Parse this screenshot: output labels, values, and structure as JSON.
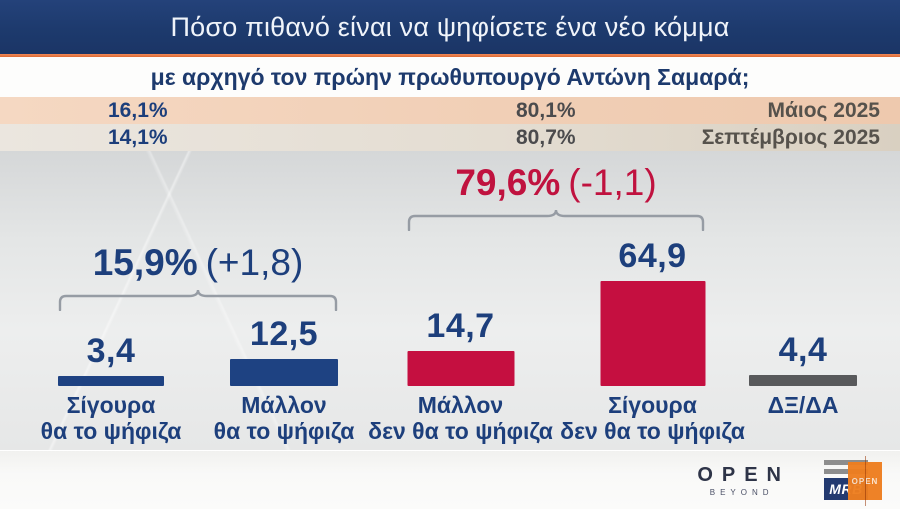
{
  "header": {
    "title": "Πόσο πιθανό είναι να ψηφίσετε ένα νέο κόμμα",
    "subtitle": "με αρχηγό τον πρώην πρωθυπουργό Αντώνη Σαμαρά;"
  },
  "history": {
    "rows": [
      {
        "likely_pct": "16,1%",
        "unlikely_pct": "80,1%",
        "period": "Μάιος 2025"
      },
      {
        "likely_pct": "14,1%",
        "unlikely_pct": "80,7%",
        "period": "Σεπτέμβριος 2025"
      }
    ]
  },
  "chart_data": {
    "type": "bar",
    "title": "Πόσο πιθανό είναι να ψηφίσετε ένα νέο κόμμα με αρχηγό τον πρώην πρωθυπουργό Αντώνη Σαμαρά;",
    "categories": [
      "Σίγουρα θα το ψήφιζα",
      "Μάλλον θα το ψήφιζα",
      "Μάλλον δεν θα το ψήφιζα",
      "Σίγουρα δεν θα το ψήφιζα",
      "ΔΞ/ΔΑ"
    ],
    "label_lines": [
      [
        "Σίγουρα",
        "θα το ψήφιζα"
      ],
      [
        "Μάλλον",
        "θα το ψήφιζα"
      ],
      [
        "Μάλλον",
        "δεν θα το ψήφιζα"
      ],
      [
        "Σίγουρα",
        "δεν θα το ψήφιζα"
      ],
      [
        "ΔΞ/ΔΑ"
      ]
    ],
    "values": [
      3.4,
      12.5,
      14.7,
      64.9,
      4.4
    ],
    "value_labels": [
      "3,4",
      "12,5",
      "14,7",
      "64,9",
      "4,4"
    ],
    "bar_colors": [
      "#1e4282",
      "#1e4282",
      "#c50f40",
      "#c50f40",
      "#58595b"
    ],
    "ylim": [
      0,
      70
    ],
    "grid": false,
    "xlabel": "",
    "ylabel": "",
    "groups": [
      {
        "total": "15,9%",
        "delta": "(+1,8)",
        "color": "#1d3f7c",
        "from_bar": 0,
        "to_bar": 1
      },
      {
        "total": "79,6%",
        "delta": "(-1,1)",
        "color": "#c0123f",
        "from_bar": 2,
        "to_bar": 3
      }
    ]
  },
  "footer": {
    "channel_name": "OPEN",
    "channel_tagline": "BEYOND",
    "pollster_name": "MRB",
    "pollster_badge": "OPEN"
  },
  "colors": {
    "header_navy": "#1d3a6d",
    "orange_divider": "#dd6a33",
    "row_may_bg": "#f1cfb6",
    "row_sep_bg": "#e4ddd2",
    "blue_bar": "#1e4282",
    "red_bar": "#c50f40",
    "grey_bar": "#58595b",
    "value_text": "#1d3f7c",
    "bracket_grey": "#969ca4"
  }
}
